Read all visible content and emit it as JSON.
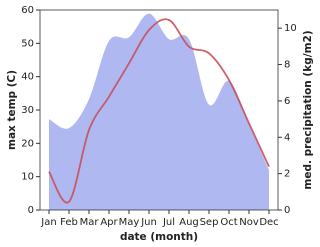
{
  "chart_data": {
    "type": "area-line",
    "x_label": "date (month)",
    "y_label": "max temp (C)",
    "y2_label": "med. precipitation (kg/m2)",
    "categories": [
      "Jan",
      "Feb",
      "Mar",
      "Apr",
      "May",
      "Jun",
      "Jul",
      "Aug",
      "Sep",
      "Oct",
      "Nov",
      "Dec"
    ],
    "ylim": [
      0,
      60
    ],
    "yticks": [
      0,
      10,
      20,
      30,
      40,
      50,
      60
    ],
    "y2lim": [
      0,
      11
    ],
    "y2ticks": [
      0,
      2,
      4,
      6,
      8,
      10
    ],
    "series": [
      {
        "name": "med. precipitation (kg/m2)",
        "kind": "area",
        "axis": "y2",
        "color": "#b0b8f2",
        "values": [
          5.0,
          4.5,
          6.1,
          9.3,
          9.5,
          10.8,
          9.4,
          9.4,
          5.8,
          7.1,
          4.7,
          2.2
        ]
      },
      {
        "name": "max temp (C)",
        "kind": "line",
        "axis": "y",
        "color": "#c8505a",
        "values": [
          11.5,
          2.5,
          24,
          34,
          44,
          54,
          57,
          49,
          47,
          39,
          26,
          13
        ]
      }
    ]
  }
}
